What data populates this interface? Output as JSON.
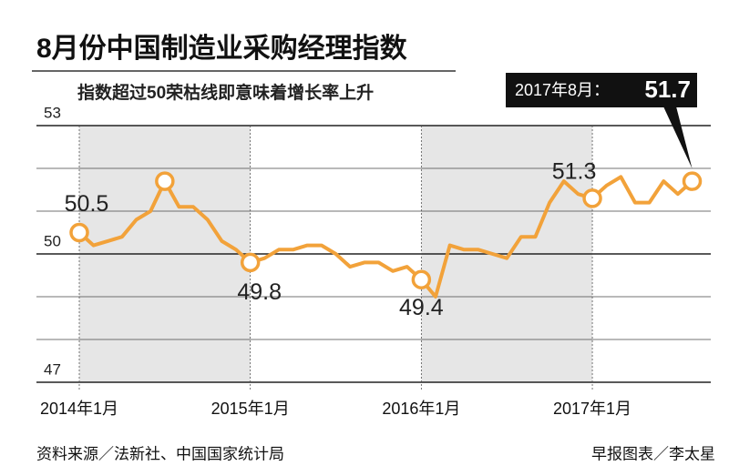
{
  "chart_data": {
    "type": "line",
    "title": "8月份中国制造业采购经理指数",
    "subtitle": "指数超过50荣枯线即意味着增长率上升",
    "categories": [
      "2014年1月",
      null,
      null,
      null,
      null,
      null,
      null,
      null,
      null,
      null,
      null,
      null,
      "2015年1月",
      null,
      null,
      null,
      null,
      null,
      null,
      null,
      null,
      null,
      null,
      null,
      "2016年1月",
      null,
      null,
      null,
      null,
      null,
      null,
      null,
      null,
      null,
      null,
      null,
      "2017年1月",
      null,
      null,
      null,
      null,
      null,
      null,
      null
    ],
    "series": [
      {
        "color": "#f2a23a",
        "values": [
          50.5,
          50.2,
          50.3,
          50.4,
          50.8,
          51.0,
          51.7,
          51.1,
          51.1,
          50.8,
          50.3,
          50.1,
          49.8,
          49.9,
          50.1,
          50.1,
          50.2,
          50.2,
          50.0,
          49.7,
          49.8,
          49.8,
          49.6,
          49.7,
          49.4,
          49.0,
          50.2,
          50.1,
          50.1,
          50.0,
          49.9,
          50.4,
          50.4,
          51.2,
          51.7,
          51.4,
          51.3,
          51.6,
          51.8,
          51.2,
          51.2,
          51.7,
          51.4,
          51.7
        ],
        "value_labels": [
          "50.5",
          null,
          null,
          null,
          null,
          null,
          null,
          null,
          null,
          null,
          null,
          null,
          "49.8",
          null,
          null,
          null,
          null,
          null,
          null,
          null,
          null,
          null,
          null,
          null,
          "49.4",
          null,
          null,
          null,
          null,
          null,
          null,
          null,
          null,
          null,
          null,
          null,
          "51.3",
          null,
          null,
          null,
          null,
          null,
          null,
          null
        ]
      }
    ],
    "highlight": [
      0,
      6,
      12,
      24,
      36,
      43
    ],
    "annotation": {
      "label": "2017年8月：",
      "value": 51.7
    },
    "ylim": [
      47,
      53
    ],
    "yticks": [
      47,
      50,
      53
    ],
    "ygrid": [
      48,
      49,
      51,
      52
    ],
    "source": "资料来源／法新社、中国国家统计局",
    "credit": "早报图表／李太星"
  }
}
